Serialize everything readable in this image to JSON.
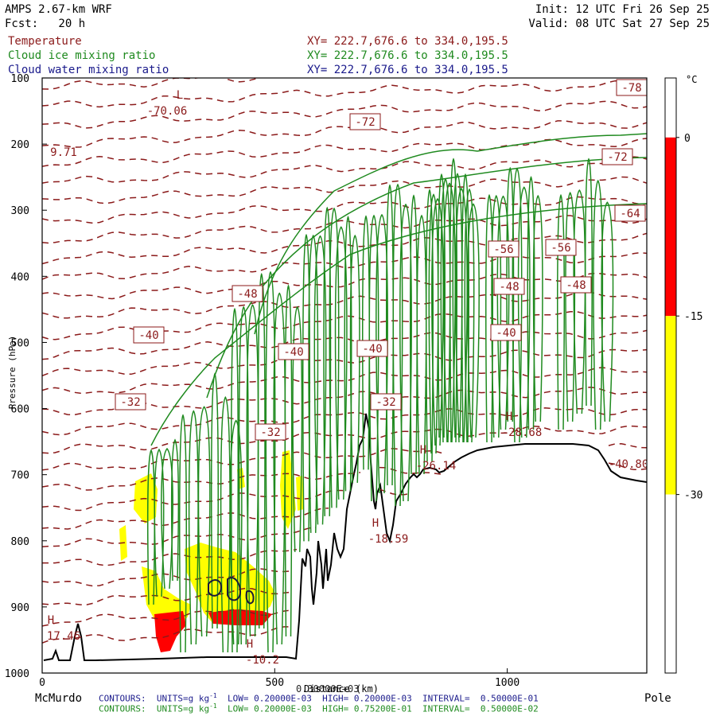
{
  "header": {
    "model": "AMPS 2.67-km WRF",
    "forecast": "Fcst:   20 h",
    "init": "Init: 12 UTC Fri 26 Sep 25",
    "valid": "Valid: 08 UTC Sat 27 Sep 25",
    "fields": [
      {
        "name": "Temperature",
        "xy": "XY= 222.7,676.6 to 334.0,195.5",
        "color": "#8b1a1a"
      },
      {
        "name": "Cloud ice mixing ratio",
        "xy": "XY= 222.7,676.6 to 334.0,195.5",
        "color": "#1f8a1f"
      },
      {
        "name": "Cloud water mixing ratio",
        "xy": "XY= 222.7,676.6 to 334.0,195.5",
        "color": "#1a1a8b"
      }
    ]
  },
  "chart_data": {
    "type": "cross-section contour",
    "ylabel": "Pressure (hPa)",
    "xlabel": "Distance (km)",
    "y_ticks": [
      "100",
      "200",
      "300",
      "400",
      "500",
      "600",
      "700",
      "800",
      "900",
      "1000"
    ],
    "x_ticks": [
      "0",
      "500",
      "1000"
    ],
    "ylim": [
      1000,
      100
    ],
    "xlim": [
      0,
      1300
    ],
    "x_end_labels": {
      "left": "McMurdo",
      "right": "Pole"
    },
    "colorbar": {
      "unit": "°C",
      "ticks": [
        "0",
        "-15",
        "-30"
      ],
      "bands": [
        {
          "from": 0,
          "to": 5,
          "color": "#ffffff"
        },
        {
          "from": -15,
          "to": 0,
          "color": "#ff0000"
        },
        {
          "from": -30,
          "to": -15,
          "color": "#ffff00"
        },
        {
          "from": -45,
          "to": -30,
          "color": "#ffffff"
        }
      ]
    },
    "temperature_labels": [
      "-78",
      "-72",
      "-72",
      "-64",
      "-56",
      "-56",
      "-48",
      "-48",
      "-48",
      "-40",
      "-40",
      "-40",
      "-40",
      "-32",
      "-32",
      "-32"
    ],
    "extrema": [
      {
        "type": "L",
        "value": "-70.06"
      },
      {
        "type": "",
        "value": "9.71"
      },
      {
        "type": "H",
        "value": "17.46"
      },
      {
        "type": "H",
        "value": "-10.2"
      },
      {
        "type": "H",
        "value": "-18.59"
      },
      {
        "type": "H",
        "value": "-26.14"
      },
      {
        "type": "H",
        "value": "-28.68"
      },
      {
        "type": "",
        "value": "-40.80"
      }
    ],
    "grid": false
  },
  "footer": {
    "water_contours": "CONTOURS:  UNITS=g kg",
    "water_stats": "LOW= 0.20000E-03  HIGH= 0.20000E-03  INTERVAL=  0.50000E-01",
    "ice_contours": "CONTOURS:  UNITS=g kg",
    "ice_stats": "LOW= 0.20000E-03  HIGH= 0.75200E-01  INTERVAL=  0.50000E-02",
    "units_exp": "-1",
    "overlap_text": "0.30000E+03"
  }
}
